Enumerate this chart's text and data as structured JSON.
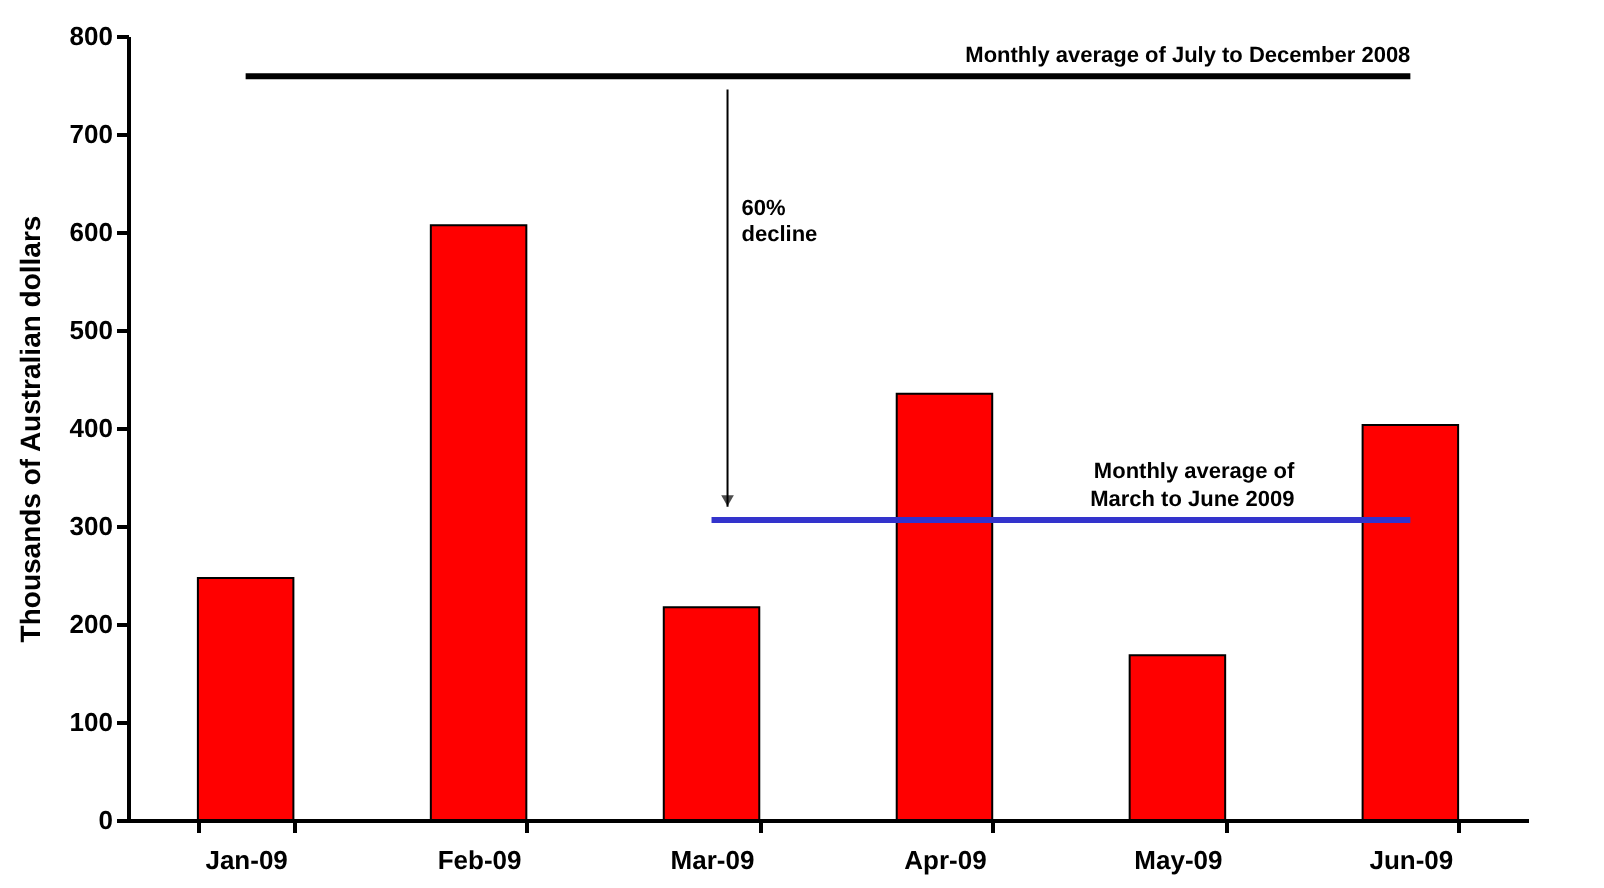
{
  "chart_data": {
    "type": "bar",
    "ylabel": "Thousands of Australian dollars",
    "categories": [
      "Jan-09",
      "Feb-09",
      "Mar-09",
      "Apr-09",
      "May-09",
      "Jun-09"
    ],
    "series": [
      {
        "color": "#ff0000",
        "values": [
          247,
          607,
          217,
          435,
          168,
          403
        ]
      },
      {
        "type": "line",
        "name": "Monthly average of July to December 2008",
        "color": "#000000",
        "values": [
          759,
          759,
          759,
          759,
          759,
          759
        ]
      },
      {
        "type": "line",
        "name": "Monthly average of\nMarch to June 2009",
        "color": "#3333cc",
        "values": [
          null,
          null,
          306,
          306,
          306,
          306
        ]
      }
    ],
    "annotations": [
      "60%\ndecline"
    ],
    "ylim": [
      0,
      800
    ],
    "yticks": [
      0,
      100,
      200,
      300,
      400,
      500,
      600,
      700,
      800
    ],
    "grid": false
  }
}
